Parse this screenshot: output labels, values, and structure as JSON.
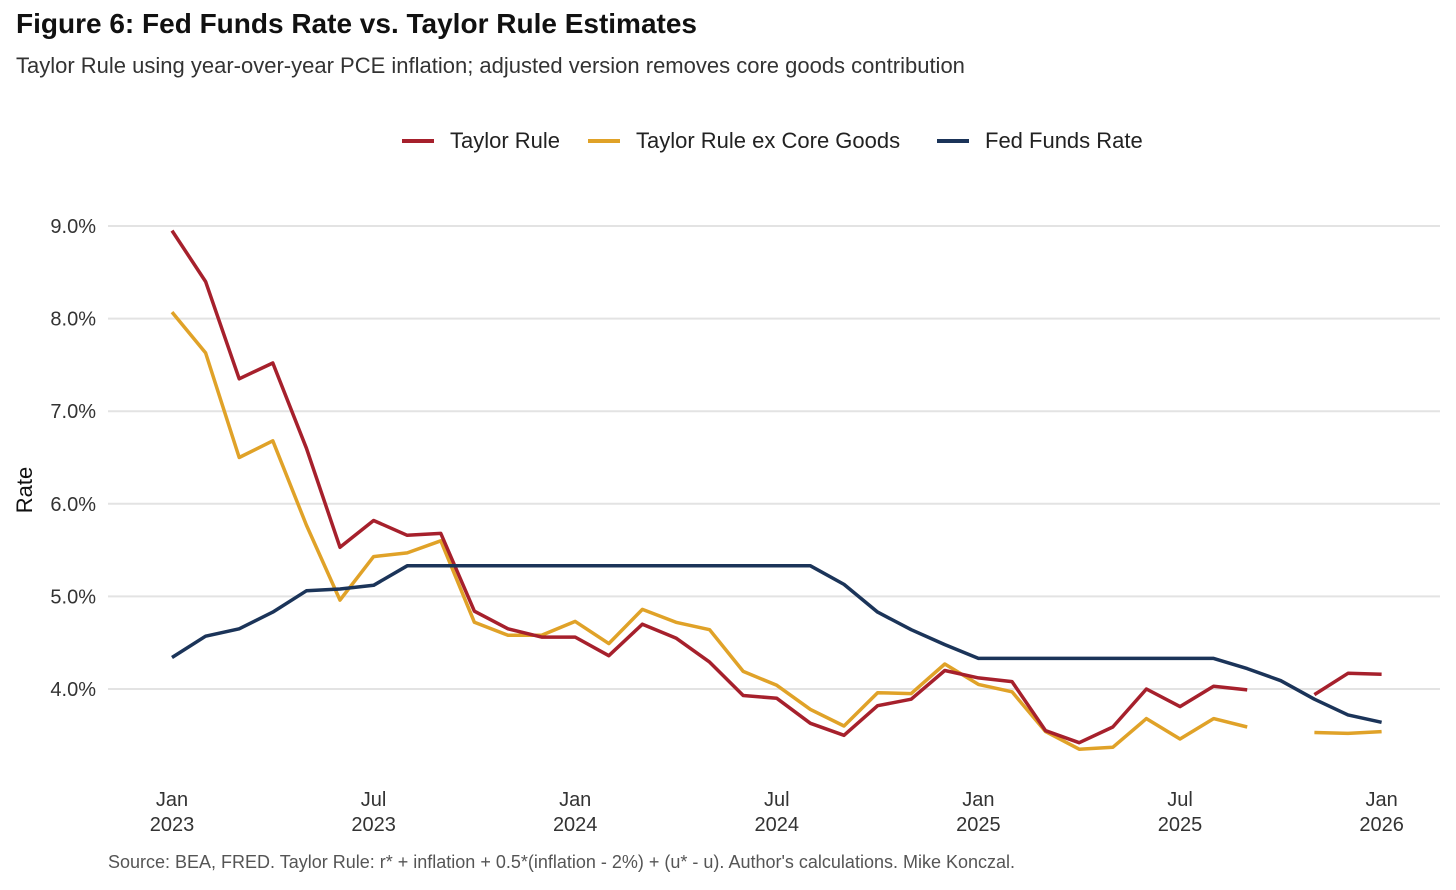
{
  "title": "Figure 6: Fed Funds Rate vs. Taylor Rule Estimates",
  "subtitle": "Taylor Rule using year-over-year PCE inflation; adjusted version removes core goods contribution",
  "source": "Source: BEA, FRED. Taylor Rule: r* + inflation + 0.5*(inflation - 2%) + (u* - u). Author's calculations. Mike Konczal.",
  "chart_data": {
    "type": "line",
    "title": "Figure 6: Fed Funds Rate vs. Taylor Rule Estimates",
    "subtitle": "Taylor Rule using year-over-year PCE inflation; adjusted version removes core goods contribution",
    "xlabel": "",
    "ylabel": "Rate",
    "ylim": [
      3.0,
      9.0
    ],
    "y_ticks": [
      "4.0%",
      "5.0%",
      "6.0%",
      "7.0%",
      "8.0%",
      "9.0%"
    ],
    "y_tick_values": [
      4.0,
      5.0,
      6.0,
      7.0,
      8.0,
      9.0
    ],
    "x_ticks": [
      {
        "month": "Jan",
        "year": "2023",
        "date": "2023-01"
      },
      {
        "month": "Jul",
        "year": "2023",
        "date": "2023-07"
      },
      {
        "month": "Jan",
        "year": "2024",
        "date": "2024-01"
      },
      {
        "month": "Jul",
        "year": "2024",
        "date": "2024-07"
      },
      {
        "month": "Jan",
        "year": "2025",
        "date": "2025-01"
      },
      {
        "month": "Jul",
        "year": "2025",
        "date": "2025-07"
      },
      {
        "month": "Jan",
        "year": "2026",
        "date": "2026-01"
      }
    ],
    "grid": "horizontal",
    "legend_position": "top",
    "x": [
      "2023-01",
      "2023-02",
      "2023-03",
      "2023-04",
      "2023-05",
      "2023-06",
      "2023-07",
      "2023-08",
      "2023-09",
      "2023-10",
      "2023-11",
      "2023-12",
      "2024-01",
      "2024-02",
      "2024-03",
      "2024-04",
      "2024-05",
      "2024-06",
      "2024-07",
      "2024-08",
      "2024-09",
      "2024-10",
      "2024-11",
      "2024-12",
      "2025-01",
      "2025-02",
      "2025-03",
      "2025-04",
      "2025-05",
      "2025-06",
      "2025-07",
      "2025-08",
      "2025-09",
      "2025-10",
      "2025-11",
      "2025-12",
      "2026-01"
    ],
    "series": [
      {
        "name": "Taylor Rule",
        "color": "#A6202C",
        "values": [
          8.95,
          8.4,
          7.35,
          7.52,
          6.6,
          5.53,
          5.82,
          5.66,
          5.68,
          4.84,
          4.65,
          4.56,
          4.56,
          4.36,
          4.7,
          4.55,
          4.29,
          3.93,
          3.9,
          3.63,
          3.5,
          3.82,
          3.89,
          4.2,
          4.12,
          4.08,
          3.55,
          3.42,
          3.59,
          4.0,
          3.81,
          4.03,
          3.99,
          null,
          3.94,
          4.17,
          4.16
        ]
      },
      {
        "name": "Taylor Rule ex Core Goods",
        "color": "#E0A228",
        "values": [
          8.07,
          7.63,
          6.5,
          6.68,
          5.77,
          4.96,
          5.43,
          5.47,
          5.6,
          4.72,
          4.58,
          4.58,
          4.73,
          4.49,
          4.86,
          4.72,
          4.64,
          4.19,
          4.04,
          3.78,
          3.6,
          3.96,
          3.95,
          4.27,
          4.05,
          3.97,
          3.54,
          3.35,
          3.37,
          3.68,
          3.46,
          3.68,
          3.59,
          null,
          3.53,
          3.52,
          3.54
        ]
      },
      {
        "name": "Fed Funds Rate",
        "color": "#1B3459",
        "values": [
          4.34,
          4.57,
          4.65,
          4.83,
          5.06,
          5.08,
          5.12,
          5.33,
          5.33,
          5.33,
          5.33,
          5.33,
          5.33,
          5.33,
          5.33,
          5.33,
          5.33,
          5.33,
          5.33,
          5.33,
          5.13,
          4.83,
          4.64,
          4.48,
          4.33,
          4.33,
          4.33,
          4.33,
          4.33,
          4.33,
          4.33,
          4.33,
          4.22,
          4.09,
          3.89,
          3.72,
          3.64
        ]
      }
    ]
  }
}
